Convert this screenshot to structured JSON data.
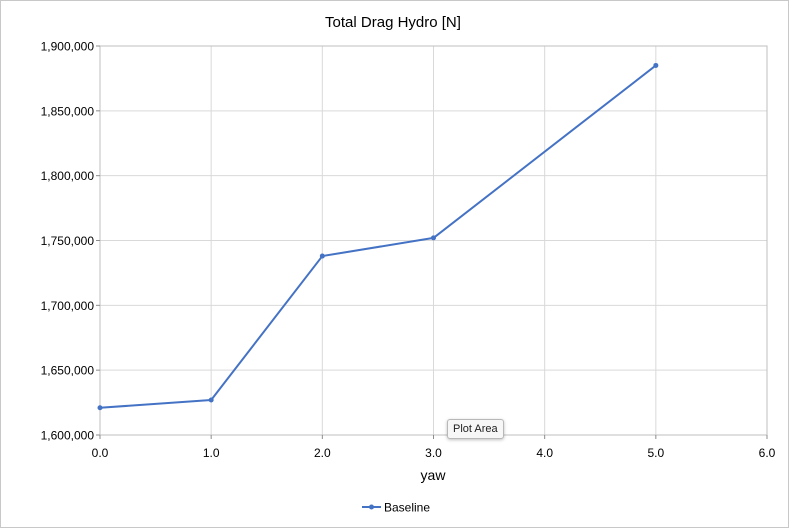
{
  "chart_data": {
    "type": "line",
    "title": "Total Drag Hydro [N]",
    "xlabel": "yaw",
    "ylabel": "",
    "xlim": [
      0,
      6
    ],
    "ylim": [
      1600000,
      1900000
    ],
    "x_ticks": [
      0,
      1,
      2,
      3,
      4,
      5,
      6
    ],
    "x_tick_labels": [
      "0.0",
      "1.0",
      "2.0",
      "3.0",
      "4.0",
      "5.0",
      "6.0"
    ],
    "y_ticks": [
      1600000,
      1650000,
      1700000,
      1750000,
      1800000,
      1850000,
      1900000
    ],
    "y_tick_labels": [
      "1,600,000",
      "1,650,000",
      "1,700,000",
      "1,750,000",
      "1,800,000",
      "1,850,000",
      "1,900,000"
    ],
    "grid": true,
    "legend_position": "bottom",
    "series": [
      {
        "name": "Baseline",
        "color": "#4472c4",
        "x": [
          0,
          1,
          2,
          3,
          5
        ],
        "y": [
          1621000,
          1627000,
          1738000,
          1752000,
          1885000
        ]
      }
    ]
  },
  "tooltip": {
    "text": "Plot Area"
  }
}
